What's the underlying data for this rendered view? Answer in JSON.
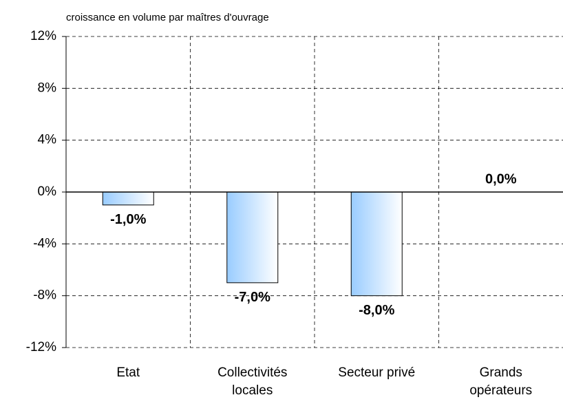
{
  "chart_data": {
    "type": "bar",
    "title": "croissance en volume par maîtres d'ouvrage",
    "categories": [
      "Etat",
      "Collectivités locales",
      "Secteur privé",
      "Grands opérateurs"
    ],
    "values": [
      -1.0,
      -7.0,
      -8.0,
      0.0
    ],
    "value_labels": [
      "-1,0%",
      "-7,0%",
      "-8,0%",
      "0,0%"
    ],
    "color": "#99ccff",
    "ylim": [
      -12,
      12
    ],
    "yticks": [
      {
        "value": -12,
        "label": "-12%"
      },
      {
        "value": -8,
        "label": "-8%"
      },
      {
        "value": -4,
        "label": "-4%"
      },
      {
        "value": 0,
        "label": "0%"
      },
      {
        "value": 4,
        "label": "4%"
      },
      {
        "value": 8,
        "label": "8%"
      },
      {
        "value": 12,
        "label": "12%"
      }
    ],
    "grid": true
  }
}
